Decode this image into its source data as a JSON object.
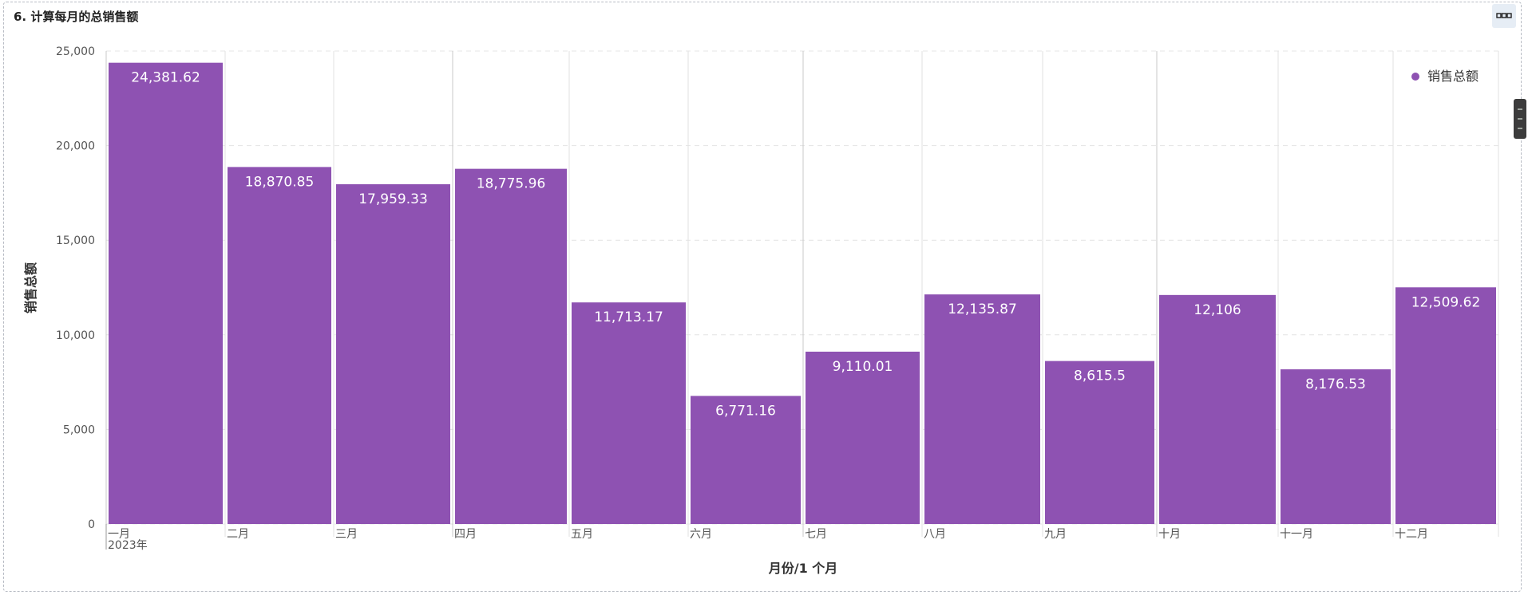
{
  "panel": {
    "title": "6. 计算每月的总销售额"
  },
  "colors": {
    "bar": "#8e52b2",
    "grid": "#e4e4e4"
  },
  "chart_data": {
    "type": "bar",
    "xlabel": "月份/1 个月",
    "ylabel": "销售总额",
    "ylim": [
      0,
      25000
    ],
    "yticks": [
      0,
      5000,
      10000,
      15000,
      20000,
      25000
    ],
    "ytick_labels": [
      "0",
      "5,000",
      "10,000",
      "15,000",
      "20,000",
      "25,000"
    ],
    "categories": [
      "一月",
      "二月",
      "三月",
      "四月",
      "五月",
      "六月",
      "七月",
      "八月",
      "九月",
      "十月",
      "十一月",
      "十二月"
    ],
    "year_label": "2023年",
    "legend": {
      "position": "top-right"
    },
    "series": [
      {
        "name": "销售总额",
        "values": [
          24381.62,
          18870.85,
          17959.33,
          18775.96,
          11713.17,
          6771.16,
          9110.01,
          12135.87,
          8615.5,
          12106,
          8176.53,
          12509.62
        ],
        "labels": [
          "24,381.62",
          "18,870.85",
          "17,959.33",
          "18,775.96",
          "11,713.17",
          "6,771.16",
          "9,110.01",
          "12,135.87",
          "8,615.5",
          "12,106",
          "8,176.53",
          "12,509.62"
        ]
      }
    ]
  }
}
